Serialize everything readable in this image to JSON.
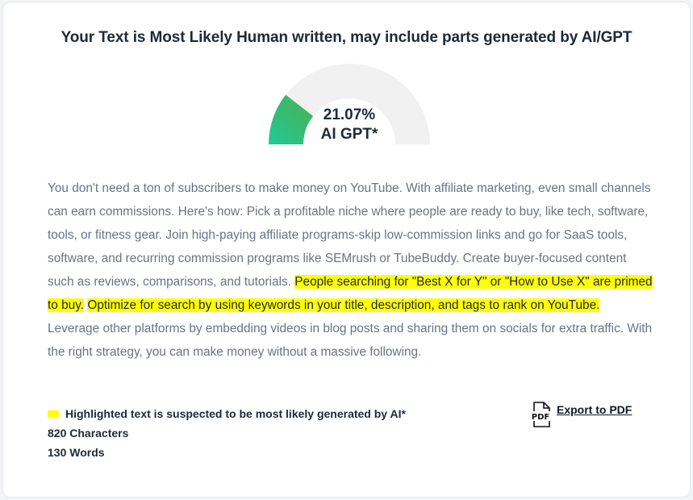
{
  "title": "Your Text is Most Likely Human written, may include parts generated by AI/GPT",
  "gauge": {
    "percent_label": "21.07%",
    "label": "AI GPT*",
    "value": 21.07,
    "max": 100,
    "track_color": "#f1f1f1",
    "fill_color_start": "#20c997",
    "fill_color_end": "#4caf50"
  },
  "text_segments": [
    {
      "text": "You don't need a ton of subscribers to make money on YouTube. With affiliate marketing, even small channels can earn commissions. Here's how: Pick a profitable niche where people are ready to buy, like tech, software, tools, or fitness gear. Join high-paying affiliate programs-skip low-commission links and go for SaaS tools, software, and recurring commission programs like SEMrush or TubeBuddy. Create buyer-focused content such as reviews, comparisons, and tutorials. ",
      "highlighted": false
    },
    {
      "text": "People searching for \"Best X for Y\" or \"How to Use X\" are primed to buy.",
      "highlighted": true
    },
    {
      "text": " ",
      "highlighted": false
    },
    {
      "text": "Optimize for search by using keywords in your title, description, and tags to rank on YouTube.",
      "highlighted": true
    },
    {
      "text": " Leverage other platforms by embedding videos in blog posts and sharing them on socials for extra traffic. With the right strategy, you can make money without a massive following.",
      "highlighted": false
    }
  ],
  "legend": {
    "highlight_note": "Highlighted text is suspected to be most likely generated by AI*",
    "highlight_color": "#ffff00",
    "characters": "820 Characters",
    "words": "130 Words"
  },
  "export": {
    "icon": "pdf-file-icon",
    "icon_text": "PDF",
    "label": "Export to PDF"
  }
}
